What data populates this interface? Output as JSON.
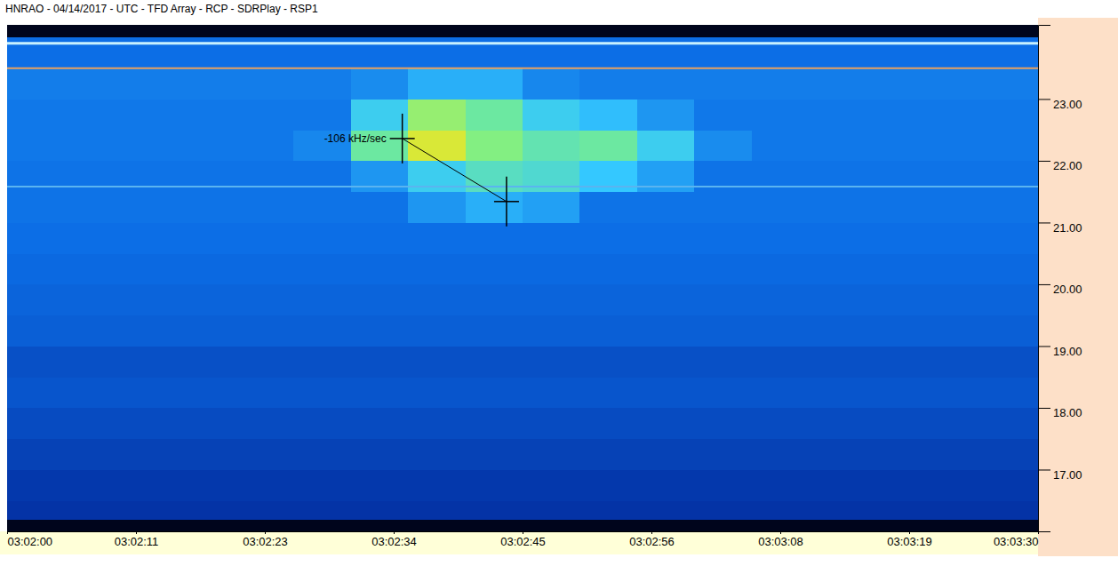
{
  "chart_data": {
    "type": "heatmap",
    "title": "HNRAO - 04/14/2017 - UTC - TFD Array - RCP - SDRPlay - RSP1",
    "xlim": [
      0,
      90
    ],
    "ylim": [
      16.0,
      24.2
    ],
    "xticks": [
      {
        "value": 0,
        "label": "03:02:00"
      },
      {
        "value": 11.25,
        "label": "03:02:11"
      },
      {
        "value": 22.5,
        "label": "03:02:23"
      },
      {
        "value": 33.75,
        "label": "03:02:34"
      },
      {
        "value": 45,
        "label": "03:02:45"
      },
      {
        "value": 56.25,
        "label": "03:02:56"
      },
      {
        "value": 67.5,
        "label": "03:03:08"
      },
      {
        "value": 78.75,
        "label": "03:03:19"
      },
      {
        "value": 90,
        "label": "03:03:30"
      }
    ],
    "yticks": [
      {
        "value": 17,
        "label": "17.00"
      },
      {
        "value": 18,
        "label": "18.00"
      },
      {
        "value": 19,
        "label": "19.00"
      },
      {
        "value": 20,
        "label": "20.00"
      },
      {
        "value": 21,
        "label": "21.00"
      },
      {
        "value": 22,
        "label": "22.00"
      },
      {
        "value": 23,
        "label": "23.00"
      }
    ],
    "zlim": [
      0,
      1
    ],
    "x_edges": [
      0,
      5,
      10,
      15,
      20,
      25,
      30,
      35,
      40,
      45,
      50,
      55,
      60,
      65,
      70,
      75,
      80,
      85,
      90
    ],
    "y_edges": [
      16.0,
      16.2,
      16.5,
      17.0,
      17.5,
      18.0,
      18.5,
      19.0,
      19.5,
      20.0,
      20.5,
      21.0,
      21.5,
      22.0,
      22.5,
      23.0,
      23.5,
      24.0,
      24.2
    ],
    "cells": [
      [
        0.05,
        0.05,
        0.05,
        0.05,
        0.05,
        0.05,
        0.05,
        0.05,
        0.05,
        0.05,
        0.05,
        0.05,
        0.05,
        0.05,
        0.05,
        0.05,
        0.05,
        0.05
      ],
      [
        0.3,
        0.3,
        0.3,
        0.3,
        0.3,
        0.3,
        0.3,
        0.3,
        0.3,
        0.3,
        0.3,
        0.3,
        0.3,
        0.3,
        0.3,
        0.3,
        0.3,
        0.3
      ],
      [
        0.31,
        0.31,
        0.31,
        0.31,
        0.31,
        0.31,
        0.31,
        0.31,
        0.31,
        0.31,
        0.31,
        0.31,
        0.31,
        0.31,
        0.31,
        0.31,
        0.31,
        0.31
      ],
      [
        0.33,
        0.33,
        0.33,
        0.33,
        0.33,
        0.33,
        0.33,
        0.33,
        0.33,
        0.33,
        0.33,
        0.33,
        0.33,
        0.33,
        0.33,
        0.33,
        0.33,
        0.33
      ],
      [
        0.35,
        0.35,
        0.35,
        0.35,
        0.35,
        0.35,
        0.35,
        0.35,
        0.35,
        0.35,
        0.35,
        0.35,
        0.35,
        0.35,
        0.35,
        0.35,
        0.35,
        0.35
      ],
      [
        0.37,
        0.37,
        0.37,
        0.37,
        0.37,
        0.37,
        0.37,
        0.37,
        0.37,
        0.37,
        0.37,
        0.37,
        0.37,
        0.37,
        0.37,
        0.37,
        0.37,
        0.37
      ],
      [
        0.36,
        0.36,
        0.36,
        0.36,
        0.36,
        0.36,
        0.36,
        0.36,
        0.36,
        0.36,
        0.36,
        0.36,
        0.36,
        0.36,
        0.36,
        0.36,
        0.36,
        0.36
      ],
      [
        0.39,
        0.39,
        0.39,
        0.39,
        0.39,
        0.39,
        0.39,
        0.39,
        0.39,
        0.39,
        0.39,
        0.39,
        0.39,
        0.39,
        0.39,
        0.39,
        0.39,
        0.39
      ],
      [
        0.4,
        0.4,
        0.4,
        0.4,
        0.4,
        0.4,
        0.4,
        0.4,
        0.4,
        0.4,
        0.4,
        0.4,
        0.4,
        0.4,
        0.4,
        0.4,
        0.4,
        0.4
      ],
      [
        0.41,
        0.41,
        0.41,
        0.41,
        0.41,
        0.41,
        0.41,
        0.41,
        0.41,
        0.41,
        0.41,
        0.41,
        0.41,
        0.41,
        0.41,
        0.41,
        0.41,
        0.41
      ],
      [
        0.42,
        0.42,
        0.42,
        0.42,
        0.42,
        0.42,
        0.42,
        0.42,
        0.42,
        0.42,
        0.42,
        0.42,
        0.42,
        0.42,
        0.42,
        0.42,
        0.42,
        0.42
      ],
      [
        0.43,
        0.43,
        0.43,
        0.43,
        0.43,
        0.43,
        0.43,
        0.5,
        0.55,
        0.52,
        0.43,
        0.43,
        0.43,
        0.43,
        0.43,
        0.43,
        0.43,
        0.43
      ],
      [
        0.43,
        0.43,
        0.43,
        0.43,
        0.43,
        0.43,
        0.5,
        0.62,
        0.68,
        0.66,
        0.6,
        0.52,
        0.43,
        0.43,
        0.43,
        0.43,
        0.43,
        0.43
      ],
      [
        0.44,
        0.44,
        0.44,
        0.44,
        0.44,
        0.47,
        0.72,
        0.85,
        0.76,
        0.7,
        0.72,
        0.62,
        0.48,
        0.44,
        0.44,
        0.44,
        0.44,
        0.44
      ],
      [
        0.44,
        0.44,
        0.44,
        0.44,
        0.44,
        0.44,
        0.62,
        0.78,
        0.72,
        0.62,
        0.58,
        0.5,
        0.44,
        0.44,
        0.44,
        0.44,
        0.44,
        0.44
      ],
      [
        0.45,
        0.45,
        0.45,
        0.45,
        0.45,
        0.45,
        0.48,
        0.55,
        0.55,
        0.47,
        0.45,
        0.45,
        0.45,
        0.45,
        0.45,
        0.45,
        0.45,
        0.45
      ],
      [
        0.42,
        0.42,
        0.42,
        0.42,
        0.42,
        0.42,
        0.42,
        0.42,
        0.42,
        0.42,
        0.42,
        0.42,
        0.42,
        0.42,
        0.42,
        0.42,
        0.42,
        0.42
      ],
      [
        0.05,
        0.05,
        0.05,
        0.05,
        0.05,
        0.05,
        0.05,
        0.05,
        0.05,
        0.05,
        0.05,
        0.05,
        0.05,
        0.05,
        0.05,
        0.05,
        0.05,
        0.05
      ]
    ],
    "hlines": [
      {
        "value": 23.9,
        "color": "#c8f2ff"
      },
      {
        "value": 23.5,
        "color": "#e8a060"
      },
      {
        "value": 21.58,
        "color": "#5ab4f0"
      }
    ],
    "annotation": {
      "text": "-106 kHz/sec",
      "x": [
        34.5,
        43.6
      ],
      "y": [
        22.36,
        21.34
      ]
    }
  }
}
